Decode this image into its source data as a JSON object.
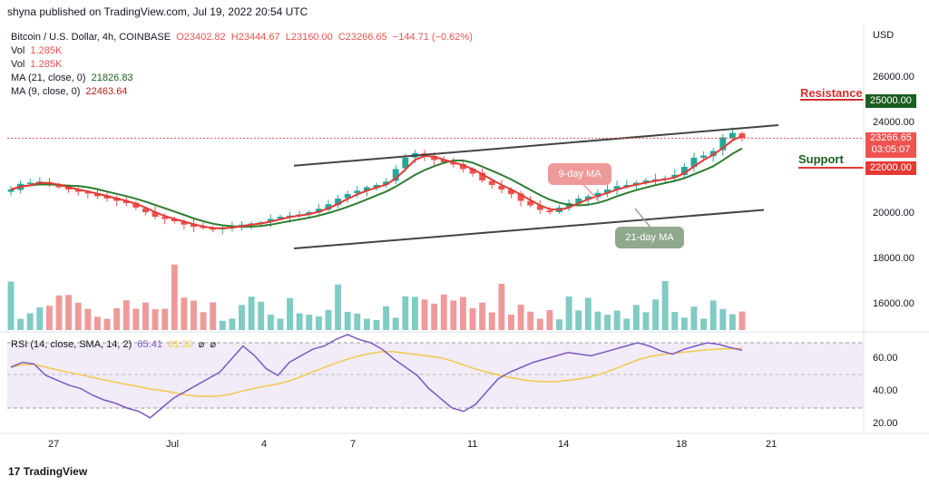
{
  "header": {
    "published": "shyna published on TradingView.com, Jul 19, 2022 20:54 UTC"
  },
  "legend": {
    "symbol": "Bitcoin / U.S. Dollar, 4h, COINBASE",
    "ohlc_o": "O23402.82",
    "ohlc_h": "H23444.67",
    "ohlc_l": "L23160.00",
    "ohlc_c": "C23266.65",
    "change": "−144.71 (−0.62%)",
    "vol1_label": "Vol",
    "vol1_value": "1.285K",
    "vol2_label": "Vol",
    "vol2_value": "1.285K",
    "ma21_label": "MA (21, close, 0)",
    "ma21_value": "21826.83",
    "ma9_label": "MA (9, close, 0)",
    "ma9_value": "22463.64"
  },
  "price_axis": {
    "currency": "USD",
    "ticks": [
      "26000.00",
      "24000.00",
      "20000.00",
      "18000.00",
      "16000.00"
    ],
    "last_price": "23266.65",
    "countdown": "03:05:07",
    "resistance_price": "25000.00",
    "support_price": "22000.00"
  },
  "rsi": {
    "label": "RSI (14, close, SMA, 14, 2)",
    "value1": "65.41",
    "value2": "61.30",
    "ticks": [
      "60.00",
      "40.00",
      "20.00"
    ]
  },
  "time_axis": [
    "27",
    "Jul",
    "4",
    "7",
    "11",
    "14",
    "18",
    "21"
  ],
  "annotations": {
    "resistance": "Resistance",
    "support": "Support",
    "ma9_bubble": "9-day MA",
    "ma21_bubble": "21-day MA"
  },
  "footer": {
    "brand": "TradingView"
  },
  "colors": {
    "up": "#26a69a",
    "down": "#ef5350",
    "ma9": "#e53935",
    "ma21": "#2e7d32",
    "resistance": "#d32f2f",
    "support": "#1b5e20",
    "support_tag": "#e53935",
    "resistance_tag": "#1b5e20",
    "rsi_line": "#7e57c2",
    "rsi_sma": "#f2c94c"
  },
  "chart_data": {
    "type": "candlestick",
    "title": "Bitcoin / U.S. Dollar, 4h, COINBASE",
    "ylabel": "USD",
    "ylim": [
      15000,
      27000
    ],
    "x_tick_labels": [
      "27",
      "Jul",
      "4",
      "7",
      "11",
      "14",
      "18",
      "21"
    ],
    "close_series": [
      21000,
      21250,
      21300,
      21350,
      21200,
      21100,
      21000,
      20900,
      20850,
      20700,
      20600,
      20500,
      20400,
      20200,
      20000,
      19800,
      19700,
      19600,
      19450,
      19350,
      19300,
      19250,
      19300,
      19400,
      19450,
      19500,
      19550,
      19700,
      19800,
      19850,
      19900,
      20000,
      20150,
      20350,
      20600,
      20800,
      20950,
      21100,
      21200,
      21350,
      21900,
      22400,
      22600,
      22450,
      22300,
      22200,
      22100,
      21900,
      21700,
      21400,
      21200,
      21000,
      20800,
      20500,
      20300,
      20100,
      20000,
      20200,
      20400,
      20600,
      20700,
      20850,
      21000,
      21150,
      21200,
      21300,
      21400,
      21450,
      21500,
      21650,
      22000,
      22400,
      22500,
      22700,
      23300,
      23500,
      23266.65
    ],
    "ma9_last": 22463.64,
    "ma21_last": 21826.83,
    "resistance_level": 25000,
    "support_level": 22000,
    "channel_upper": [
      [
        0,
        22050
      ],
      [
        76,
        23840
      ]
    ],
    "channel_lower": [
      [
        0,
        18400
      ],
      [
        76,
        20100
      ]
    ],
    "rsi_series": [
      55,
      58,
      57,
      50,
      47,
      44,
      42,
      38,
      35,
      33,
      30,
      28,
      24,
      30,
      36,
      40,
      44,
      48,
      52,
      60,
      68,
      62,
      54,
      50,
      58,
      62,
      66,
      68,
      72,
      75,
      72,
      70,
      66,
      60,
      55,
      50,
      42,
      36,
      30,
      28,
      32,
      40,
      48,
      52,
      55,
      58,
      60,
      62,
      64,
      63,
      62,
      64,
      66,
      68,
      70,
      68,
      65,
      63,
      66,
      68,
      70,
      69,
      67,
      65.41
    ],
    "rsi_sma_last": 61.3,
    "rsi_levels": [
      70,
      50,
      30
    ]
  }
}
